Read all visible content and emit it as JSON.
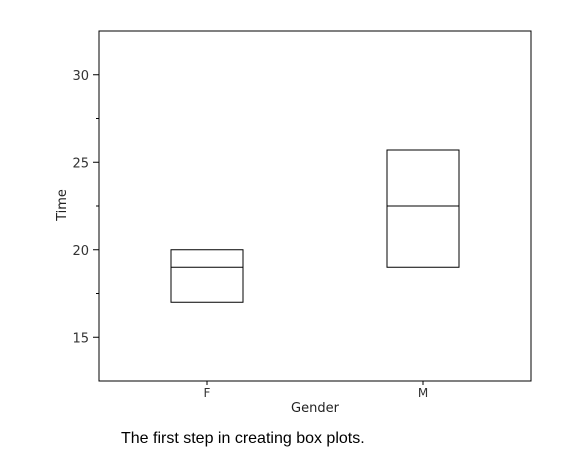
{
  "chart_data": {
    "type": "box",
    "xlabel": "Gender",
    "ylabel": "Time",
    "ylim": [
      12.5,
      32.5
    ],
    "y_ticks_major": [
      15,
      20,
      25,
      30
    ],
    "y_ticks_minor": [
      17.5,
      22.5,
      27.5
    ],
    "grid": false,
    "categories": [
      "F",
      "M"
    ],
    "boxes": [
      {
        "category": "F",
        "q1": 17,
        "median": 19,
        "q3": 20
      },
      {
        "category": "M",
        "q1": 19,
        "median": 22.5,
        "q3": 25.7
      }
    ]
  },
  "caption": "The first step in creating box plots."
}
